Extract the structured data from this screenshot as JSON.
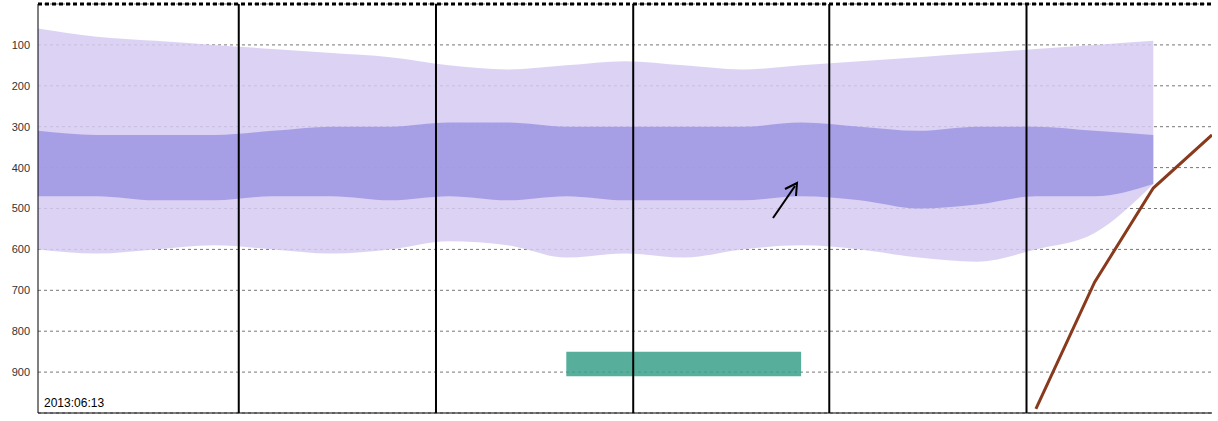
{
  "chart_data": {
    "type": "area",
    "x": [
      0,
      5,
      10,
      15,
      20,
      25,
      30,
      35,
      40,
      45,
      50,
      55,
      60,
      65,
      70,
      75,
      80,
      85,
      90,
      95,
      100
    ],
    "xlim": [
      0,
      100
    ],
    "ylim": [
      0,
      1000
    ],
    "yticks": [
      100,
      200,
      300,
      400,
      500,
      600,
      700,
      800,
      900
    ],
    "grid": true,
    "tick_labels": "y",
    "vlines": [
      17.1,
      33.9,
      50.7,
      67.4,
      84.2
    ],
    "annotations": [
      "2013:06:13"
    ],
    "series": [
      {
        "type": "area",
        "color": "#d6cbf2",
        "values": [
          [
            60,
            600
          ],
          [
            80,
            610
          ],
          [
            90,
            600
          ],
          [
            100,
            590
          ],
          [
            110,
            600
          ],
          [
            120,
            610
          ],
          [
            130,
            600
          ],
          [
            150,
            580
          ],
          [
            160,
            590
          ],
          [
            150,
            620
          ],
          [
            140,
            610
          ],
          [
            150,
            620
          ],
          [
            160,
            600
          ],
          [
            150,
            590
          ],
          [
            140,
            600
          ],
          [
            130,
            620
          ],
          [
            120,
            630
          ],
          [
            110,
            600
          ],
          [
            100,
            560
          ],
          [
            90,
            440
          ],
          null
        ]
      },
      {
        "type": "area",
        "color": "#9d95e3",
        "values": [
          [
            310,
            470
          ],
          [
            320,
            470
          ],
          [
            320,
            480
          ],
          [
            320,
            480
          ],
          [
            310,
            470
          ],
          [
            300,
            470
          ],
          [
            300,
            480
          ],
          [
            290,
            470
          ],
          [
            290,
            480
          ],
          [
            300,
            470
          ],
          [
            300,
            480
          ],
          [
            300,
            480
          ],
          [
            300,
            480
          ],
          [
            290,
            470
          ],
          [
            300,
            480
          ],
          [
            310,
            500
          ],
          [
            300,
            490
          ],
          [
            300,
            470
          ],
          [
            310,
            470
          ],
          [
            320,
            440
          ],
          null
        ]
      },
      {
        "type": "area",
        "color": "#3aa08a",
        "values": [
          null,
          null,
          null,
          null,
          null,
          null,
          null,
          null,
          null,
          [
            850,
            910
          ],
          [
            850,
            910
          ],
          [
            850,
            910
          ],
          [
            850,
            910
          ],
          [
            850,
            910
          ],
          null,
          null,
          null,
          null,
          null,
          null,
          null
        ]
      },
      {
        "type": "line",
        "color": "#8a3a1c",
        "values": [
          null,
          null,
          null,
          null,
          null,
          null,
          null,
          null,
          null,
          null,
          null,
          null,
          null,
          null,
          null,
          null,
          null,
          990,
          680,
          450,
          320
        ]
      }
    ]
  }
}
